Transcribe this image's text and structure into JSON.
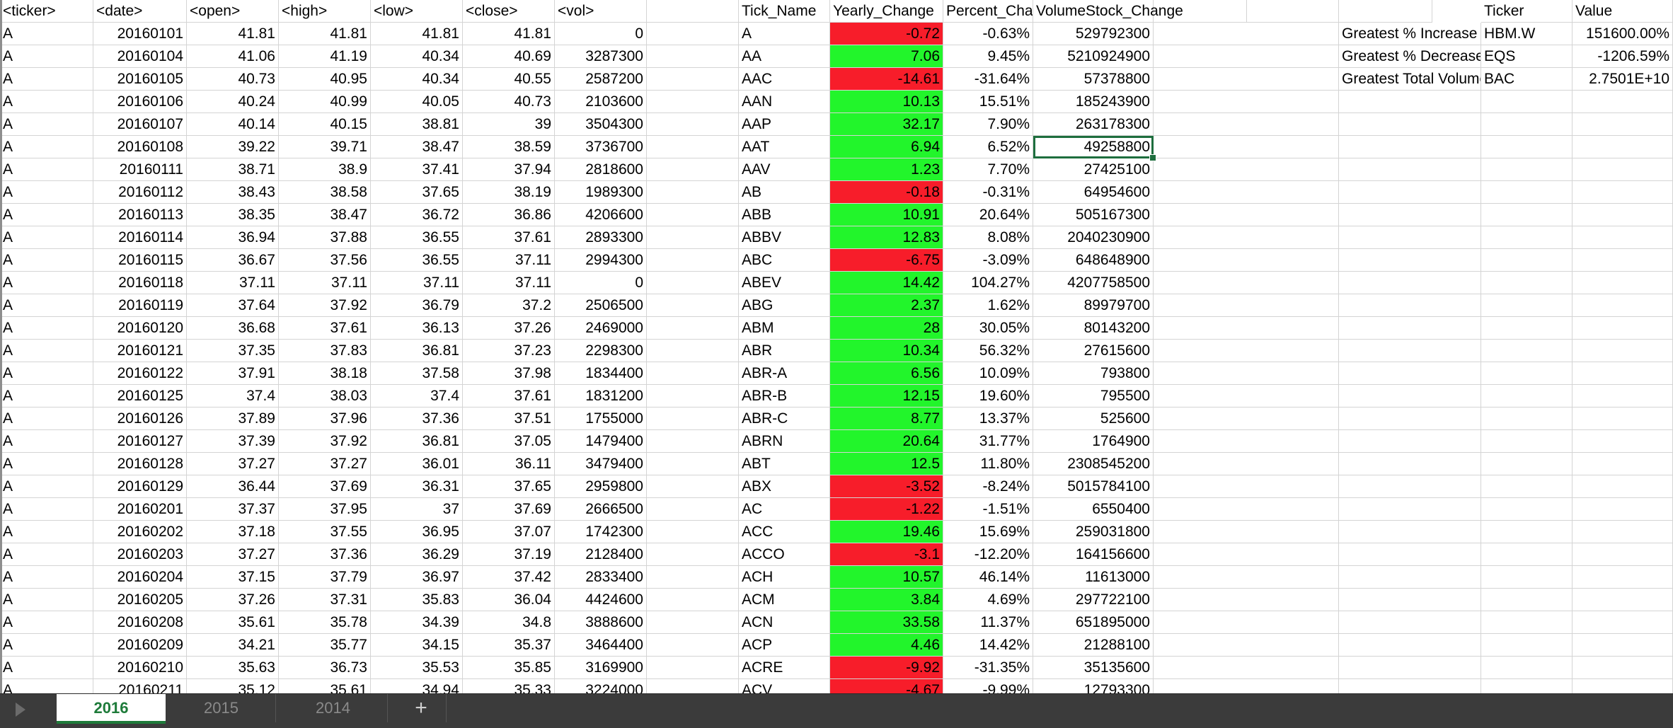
{
  "headers": {
    "left": [
      "<ticker>",
      "<date>",
      "<open>",
      "<high>",
      "<low>",
      "<close>",
      "<vol>"
    ],
    "summary": [
      "Tick_Name",
      "Yearly_Change",
      "Percent_Change",
      "VolumeStock_Change"
    ],
    "greatest": [
      "Ticker",
      "Value"
    ]
  },
  "left_rows": [
    [
      "A",
      "20160101",
      "41.81",
      "41.81",
      "41.81",
      "41.81",
      "0"
    ],
    [
      "A",
      "20160104",
      "41.06",
      "41.19",
      "40.34",
      "40.69",
      "3287300"
    ],
    [
      "A",
      "20160105",
      "40.73",
      "40.95",
      "40.34",
      "40.55",
      "2587200"
    ],
    [
      "A",
      "20160106",
      "40.24",
      "40.99",
      "40.05",
      "40.73",
      "2103600"
    ],
    [
      "A",
      "20160107",
      "40.14",
      "40.15",
      "38.81",
      "39",
      "3504300"
    ],
    [
      "A",
      "20160108",
      "39.22",
      "39.71",
      "38.47",
      "38.59",
      "3736700"
    ],
    [
      "A",
      "20160111",
      "38.71",
      "38.9",
      "37.41",
      "37.94",
      "2818600"
    ],
    [
      "A",
      "20160112",
      "38.43",
      "38.58",
      "37.65",
      "38.19",
      "1989300"
    ],
    [
      "A",
      "20160113",
      "38.35",
      "38.47",
      "36.72",
      "36.86",
      "4206600"
    ],
    [
      "A",
      "20160114",
      "36.94",
      "37.88",
      "36.55",
      "37.61",
      "2893300"
    ],
    [
      "A",
      "20160115",
      "36.67",
      "37.56",
      "36.55",
      "37.11",
      "2994300"
    ],
    [
      "A",
      "20160118",
      "37.11",
      "37.11",
      "37.11",
      "37.11",
      "0"
    ],
    [
      "A",
      "20160119",
      "37.64",
      "37.92",
      "36.79",
      "37.2",
      "2506500"
    ],
    [
      "A",
      "20160120",
      "36.68",
      "37.61",
      "36.13",
      "37.26",
      "2469000"
    ],
    [
      "A",
      "20160121",
      "37.35",
      "37.83",
      "36.81",
      "37.23",
      "2298300"
    ],
    [
      "A",
      "20160122",
      "37.91",
      "38.18",
      "37.58",
      "37.98",
      "1834400"
    ],
    [
      "A",
      "20160125",
      "37.4",
      "38.03",
      "37.4",
      "37.61",
      "1831200"
    ],
    [
      "A",
      "20160126",
      "37.89",
      "37.96",
      "37.36",
      "37.51",
      "1755000"
    ],
    [
      "A",
      "20160127",
      "37.39",
      "37.92",
      "36.81",
      "37.05",
      "1479400"
    ],
    [
      "A",
      "20160128",
      "37.27",
      "37.27",
      "36.01",
      "36.11",
      "3479400"
    ],
    [
      "A",
      "20160129",
      "36.44",
      "37.69",
      "36.31",
      "37.65",
      "2959800"
    ],
    [
      "A",
      "20160201",
      "37.37",
      "37.95",
      "37",
      "37.69",
      "2666500"
    ],
    [
      "A",
      "20160202",
      "37.18",
      "37.55",
      "36.95",
      "37.07",
      "1742300"
    ],
    [
      "A",
      "20160203",
      "37.27",
      "37.36",
      "36.29",
      "37.19",
      "2128400"
    ],
    [
      "A",
      "20160204",
      "37.15",
      "37.79",
      "36.97",
      "37.42",
      "2833400"
    ],
    [
      "A",
      "20160205",
      "37.26",
      "37.31",
      "35.83",
      "36.04",
      "4424600"
    ],
    [
      "A",
      "20160208",
      "35.61",
      "35.78",
      "34.39",
      "34.8",
      "3888600"
    ],
    [
      "A",
      "20160209",
      "34.21",
      "35.77",
      "34.15",
      "35.37",
      "3464400"
    ],
    [
      "A",
      "20160210",
      "35.63",
      "36.73",
      "35.53",
      "35.85",
      "3169900"
    ],
    [
      "A",
      "20160211",
      "35.12",
      "35.61",
      "34.94",
      "35.33",
      "3224000"
    ]
  ],
  "summary_rows": [
    {
      "tick": "A",
      "change": "-0.72",
      "pct": "-0.63%",
      "vol": "529792300",
      "dir": "neg"
    },
    {
      "tick": "AA",
      "change": "7.06",
      "pct": "9.45%",
      "vol": "5210924900",
      "dir": "pos"
    },
    {
      "tick": "AAC",
      "change": "-14.61",
      "pct": "-31.64%",
      "vol": "57378800",
      "dir": "neg"
    },
    {
      "tick": "AAN",
      "change": "10.13",
      "pct": "15.51%",
      "vol": "185243900",
      "dir": "pos"
    },
    {
      "tick": "AAP",
      "change": "32.17",
      "pct": "7.90%",
      "vol": "263178300",
      "dir": "pos"
    },
    {
      "tick": "AAT",
      "change": "6.94",
      "pct": "6.52%",
      "vol": "49258800",
      "dir": "pos"
    },
    {
      "tick": "AAV",
      "change": "1.23",
      "pct": "7.70%",
      "vol": "27425100",
      "dir": "pos"
    },
    {
      "tick": "AB",
      "change": "-0.18",
      "pct": "-0.31%",
      "vol": "64954600",
      "dir": "neg"
    },
    {
      "tick": "ABB",
      "change": "10.91",
      "pct": "20.64%",
      "vol": "505167300",
      "dir": "pos"
    },
    {
      "tick": "ABBV",
      "change": "12.83",
      "pct": "8.08%",
      "vol": "2040230900",
      "dir": "pos"
    },
    {
      "tick": "ABC",
      "change": "-6.75",
      "pct": "-3.09%",
      "vol": "648648900",
      "dir": "neg"
    },
    {
      "tick": "ABEV",
      "change": "14.42",
      "pct": "104.27%",
      "vol": "4207758500",
      "dir": "pos"
    },
    {
      "tick": "ABG",
      "change": "2.37",
      "pct": "1.62%",
      "vol": "89979700",
      "dir": "pos"
    },
    {
      "tick": "ABM",
      "change": "28",
      "pct": "30.05%",
      "vol": "80143200",
      "dir": "pos"
    },
    {
      "tick": "ABR",
      "change": "10.34",
      "pct": "56.32%",
      "vol": "27615600",
      "dir": "pos"
    },
    {
      "tick": "ABR-A",
      "change": "6.56",
      "pct": "10.09%",
      "vol": "793800",
      "dir": "pos"
    },
    {
      "tick": "ABR-B",
      "change": "12.15",
      "pct": "19.60%",
      "vol": "795500",
      "dir": "pos"
    },
    {
      "tick": "ABR-C",
      "change": "8.77",
      "pct": "13.37%",
      "vol": "525600",
      "dir": "pos"
    },
    {
      "tick": "ABRN",
      "change": "20.64",
      "pct": "31.77%",
      "vol": "1764900",
      "dir": "pos"
    },
    {
      "tick": "ABT",
      "change": "12.5",
      "pct": "11.80%",
      "vol": "2308545200",
      "dir": "pos"
    },
    {
      "tick": "ABX",
      "change": "-3.52",
      "pct": "-8.24%",
      "vol": "5015784100",
      "dir": "neg"
    },
    {
      "tick": "AC",
      "change": "-1.22",
      "pct": "-1.51%",
      "vol": "6550400",
      "dir": "neg"
    },
    {
      "tick": "ACC",
      "change": "19.46",
      "pct": "15.69%",
      "vol": "259031800",
      "dir": "pos"
    },
    {
      "tick": "ACCO",
      "change": "-3.1",
      "pct": "-12.20%",
      "vol": "164156600",
      "dir": "neg"
    },
    {
      "tick": "ACH",
      "change": "10.57",
      "pct": "46.14%",
      "vol": "11613000",
      "dir": "pos"
    },
    {
      "tick": "ACM",
      "change": "3.84",
      "pct": "4.69%",
      "vol": "297722100",
      "dir": "pos"
    },
    {
      "tick": "ACN",
      "change": "33.58",
      "pct": "11.37%",
      "vol": "651895000",
      "dir": "pos"
    },
    {
      "tick": "ACP",
      "change": "4.46",
      "pct": "14.42%",
      "vol": "21288100",
      "dir": "pos"
    },
    {
      "tick": "ACRE",
      "change": "-9.92",
      "pct": "-31.35%",
      "vol": "35135600",
      "dir": "neg"
    },
    {
      "tick": "ACV",
      "change": "-4.67",
      "pct": "-9.99%",
      "vol": "12793300",
      "dir": "neg"
    }
  ],
  "greatest_rows": [
    {
      "label": "Greatest % Increase",
      "ticker": "HBM.W",
      "value": "151600.00%"
    },
    {
      "label": "Greatest % Decrease",
      "ticker": "EQS",
      "value": "-1206.59%"
    },
    {
      "label": "Greatest Total Volume",
      "ticker": "BAC",
      "value": "2.7501E+10"
    }
  ],
  "selected_cell": {
    "row": 5,
    "column": "vol"
  },
  "sheet_tabs": [
    {
      "label": "2016",
      "active": true
    },
    {
      "label": "2015",
      "active": false
    },
    {
      "label": "2014",
      "active": false
    }
  ],
  "add_sheet_label": "+",
  "colors": {
    "positive": "#22f52b",
    "negative": "#f71d2a",
    "accent": "#1e7b3a"
  }
}
